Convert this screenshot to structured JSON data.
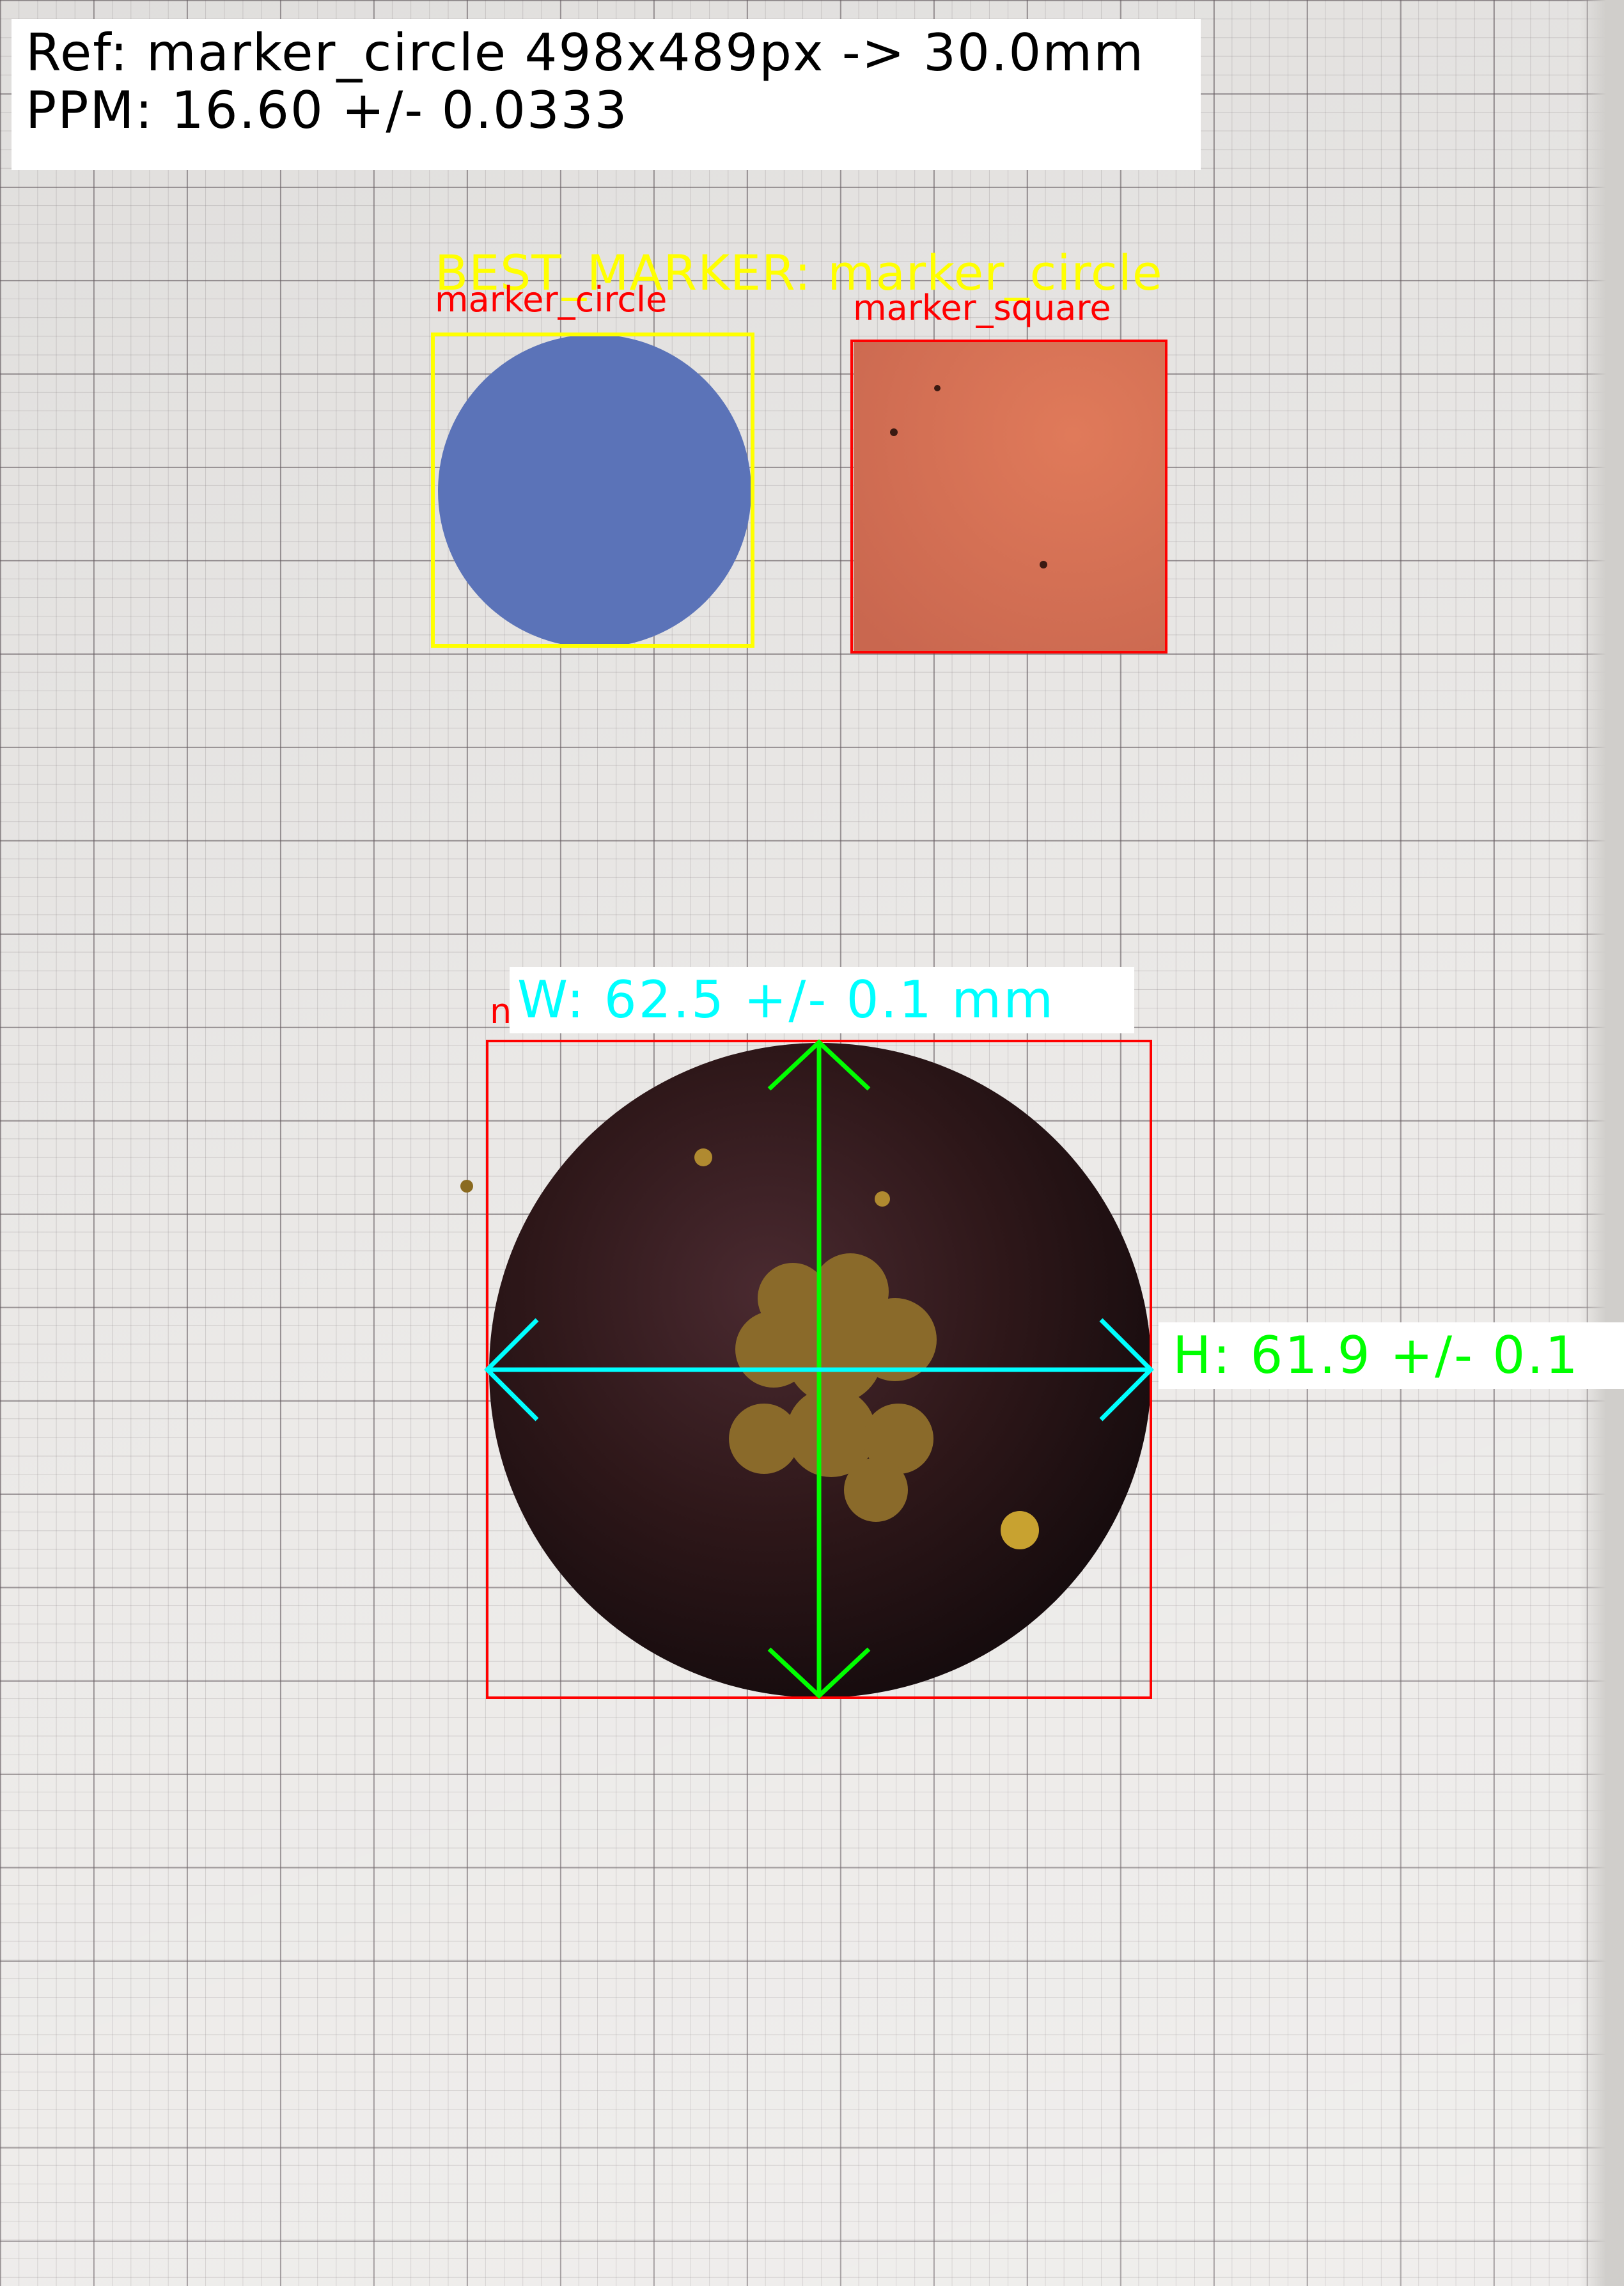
{
  "header": {
    "ref_line": "Ref: marker_circle 498x489px -> 30.0mm",
    "ppm_line": "PPM: 16.60 +/- 0.0333"
  },
  "best_marker_label": "BEST_MARKER: marker_circle",
  "markers": [
    {
      "label": "marker_circle",
      "box_color": "#ffff00",
      "fill": "#5b73b8"
    },
    {
      "label": "marker_square",
      "box_color": "#ff0000",
      "fill": "#cf6a52"
    }
  ],
  "object": {
    "box_label": "n",
    "width_text": "W: 62.5 +/- 0.1 mm",
    "height_text": "H: 61.9 +/- 0.1",
    "width_color": "#00ffff",
    "height_color": "#00ff00",
    "box_color": "#ff0000"
  }
}
